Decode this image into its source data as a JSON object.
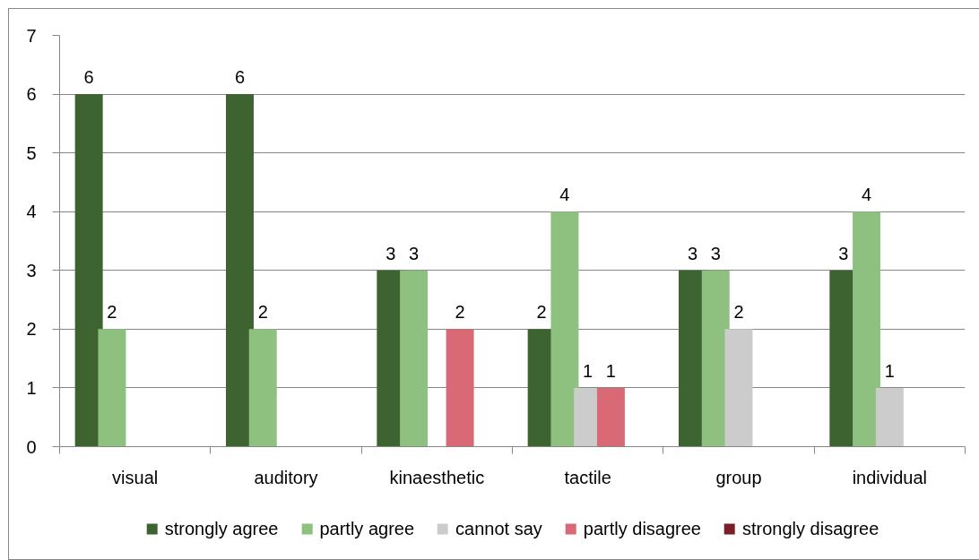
{
  "chart_data": {
    "type": "bar",
    "categories": [
      "visual",
      "auditory",
      "kinaesthetic",
      "tactile",
      "group",
      "individual"
    ],
    "series": [
      {
        "name": "strongly agree",
        "color": "#3d6430",
        "values": [
          6,
          6,
          3,
          2,
          3,
          3
        ]
      },
      {
        "name": "partly agree",
        "color": "#8ec07f",
        "values": [
          2,
          2,
          3,
          4,
          3,
          4
        ]
      },
      {
        "name": "cannot say",
        "color": "#cccccc",
        "values": [
          null,
          null,
          null,
          1,
          2,
          1
        ]
      },
      {
        "name": "partly disagree",
        "color": "#d96975",
        "values": [
          null,
          null,
          2,
          1,
          null,
          null
        ]
      },
      {
        "name": "strongly disagree",
        "color": "#7a1f28",
        "values": [
          null,
          null,
          null,
          null,
          null,
          null
        ]
      }
    ],
    "ylim": [
      0,
      7
    ],
    "yticks": [
      0,
      1,
      2,
      3,
      4,
      5,
      6,
      7
    ],
    "grid": "y",
    "legend": "bottom",
    "data_labels": true
  }
}
